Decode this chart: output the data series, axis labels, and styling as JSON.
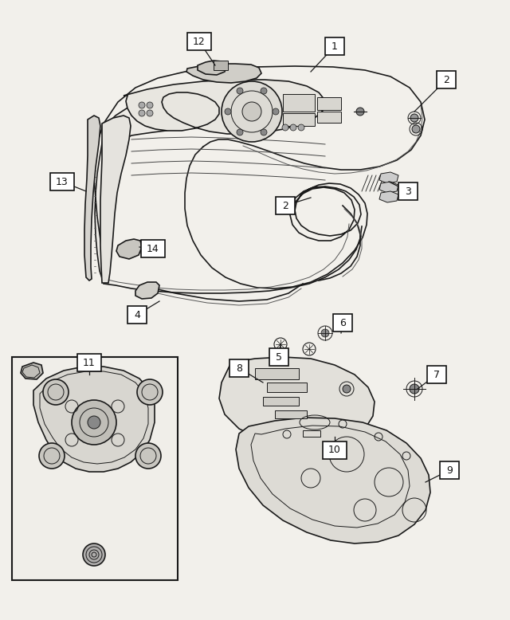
{
  "bg_color": "#f2f0eb",
  "line_color": "#1a1a1a",
  "label_bg": "#ffffff",
  "label_border": "#111111",
  "figsize": [
    6.4,
    7.78
  ],
  "dpi": 100
}
